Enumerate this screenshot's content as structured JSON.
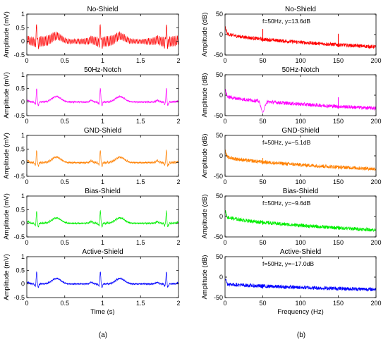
{
  "figure": {
    "caption_left": "(a)",
    "caption_right": "(b)"
  },
  "chart_data": [
    {
      "type": "line",
      "title": "No-Shield",
      "xlabel": "",
      "ylabel": "Amplitude (mV)",
      "xlim": [
        0,
        2
      ],
      "ylim": [
        -0.5,
        1
      ],
      "xticks": [
        0,
        0.5,
        1,
        1.5,
        2
      ],
      "xticklabels": [
        "0",
        "0.5",
        "1",
        "1.5",
        "2"
      ],
      "yticks": [
        -0.5,
        0,
        0.5,
        1
      ],
      "yticklabels": [
        "-0.5",
        "0",
        "0.5",
        "1"
      ],
      "color": "#ff0000",
      "series": [
        {
          "shape": "ecg",
          "baseline": 0,
          "noise_50hz_amplitude": 0.18,
          "r_peaks_s": [
            0.13,
            0.97,
            1.84
          ],
          "r_peak_mV": 0.55,
          "t_wave_mV": 0.2
        }
      ]
    },
    {
      "type": "line",
      "title": "No-Shield",
      "xlabel": "",
      "ylabel": "Amplitude (dB)",
      "xlim": [
        0,
        200
      ],
      "ylim": [
        -50,
        50
      ],
      "xticks": [
        0,
        50,
        100,
        150,
        200
      ],
      "xticklabels": [
        "0",
        "50",
        "100",
        "150",
        "200"
      ],
      "yticks": [
        -50,
        0,
        50
      ],
      "yticklabels": [
        "-50",
        "0",
        "50"
      ],
      "color": "#ff0000",
      "annotation": "f=50Hz, y=13.6dB",
      "series": [
        {
          "shape": "spectrum",
          "start_dB": 5,
          "end_dB": -30,
          "spikes": [
            {
              "x": 50,
              "y": 13.6
            },
            {
              "x": 150,
              "y": 2
            }
          ]
        }
      ]
    },
    {
      "type": "line",
      "title": "50Hz-Notch",
      "xlabel": "",
      "ylabel": "Amplitude (mV)",
      "xlim": [
        0,
        2
      ],
      "ylim": [
        -0.5,
        1
      ],
      "xticks": [
        0,
        0.5,
        1,
        1.5,
        2
      ],
      "xticklabels": [
        "0",
        "0.5",
        "1",
        "1.5",
        "2"
      ],
      "yticks": [
        -0.5,
        0,
        0.5,
        1
      ],
      "yticklabels": [
        "-0.5",
        "0",
        "0.5",
        "1"
      ],
      "color": "#ff00ff",
      "series": [
        {
          "shape": "ecg",
          "baseline": 0,
          "noise_50hz_amplitude": 0.02,
          "r_peaks_s": [
            0.13,
            0.97,
            1.84
          ],
          "r_peak_mV": 0.5,
          "t_wave_mV": 0.2
        }
      ]
    },
    {
      "type": "line",
      "title": "50Hz-Notch",
      "xlabel": "",
      "ylabel": "Amplitude (dB)",
      "xlim": [
        0,
        200
      ],
      "ylim": [
        -50,
        50
      ],
      "xticks": [
        0,
        50,
        100,
        150,
        200
      ],
      "xticklabels": [
        "0",
        "50",
        "100",
        "150",
        "200"
      ],
      "yticks": [
        -50,
        0,
        50
      ],
      "yticklabels": [
        "-50",
        "0",
        "50"
      ],
      "color": "#ff00ff",
      "annotation": "",
      "series": [
        {
          "shape": "spectrum",
          "start_dB": 0,
          "end_dB": -32,
          "notch": {
            "x": 50,
            "y": -42
          },
          "spikes": [
            {
              "x": 150,
              "y": -5
            }
          ]
        }
      ]
    },
    {
      "type": "line",
      "title": "GND-Shield",
      "xlabel": "",
      "ylabel": "Amplitude (mV)",
      "xlim": [
        0,
        2
      ],
      "ylim": [
        -0.5,
        1
      ],
      "xticks": [
        0,
        0.5,
        1,
        1.5,
        2
      ],
      "xticklabels": [
        "0",
        "0.5",
        "1",
        "1.5",
        "2"
      ],
      "yticks": [
        -0.5,
        0,
        0.5,
        1
      ],
      "yticklabels": [
        "-0.5",
        "0",
        "0.5",
        "1"
      ],
      "color": "#ff8000",
      "series": [
        {
          "shape": "ecg",
          "baseline": 0,
          "noise_50hz_amplitude": 0.03,
          "r_peaks_s": [
            0.13,
            0.97,
            1.84
          ],
          "r_peak_mV": 0.45,
          "t_wave_mV": 0.2
        }
      ]
    },
    {
      "type": "line",
      "title": "GND-Shield",
      "xlabel": "",
      "ylabel": "Amplitude (dB)",
      "xlim": [
        0,
        200
      ],
      "ylim": [
        -50,
        50
      ],
      "xticks": [
        0,
        50,
        100,
        150,
        200
      ],
      "xticklabels": [
        "0",
        "50",
        "100",
        "150",
        "200"
      ],
      "yticks": [
        -50,
        0,
        50
      ],
      "yticklabels": [
        "-50",
        "0",
        "50"
      ],
      "color": "#ff8000",
      "annotation": "f=50Hz, y=−5.1dB",
      "series": [
        {
          "shape": "spectrum",
          "start_dB": 0,
          "end_dB": -32,
          "spikes": [
            {
              "x": 50,
              "y": -5.1
            }
          ]
        }
      ]
    },
    {
      "type": "line",
      "title": "Bias-Shield",
      "xlabel": "",
      "ylabel": "Amplitude (mV)",
      "xlim": [
        0,
        2
      ],
      "ylim": [
        -0.5,
        1
      ],
      "xticks": [
        0,
        0.5,
        1,
        1.5,
        2
      ],
      "xticklabels": [
        "0",
        "0.5",
        "1",
        "1.5",
        "2"
      ],
      "yticks": [
        -0.5,
        0,
        0.5,
        1
      ],
      "yticklabels": [
        "-0.5",
        "0",
        "0.5",
        "1"
      ],
      "color": "#00ee00",
      "series": [
        {
          "shape": "ecg",
          "baseline": 0,
          "noise_50hz_amplitude": 0.025,
          "r_peaks_s": [
            0.13,
            0.97,
            1.84
          ],
          "r_peak_mV": 0.45,
          "t_wave_mV": 0.2
        }
      ]
    },
    {
      "type": "line",
      "title": "Bias-Shield",
      "xlabel": "",
      "ylabel": "Amplitude (dB)",
      "xlim": [
        0,
        200
      ],
      "ylim": [
        -50,
        50
      ],
      "xticks": [
        0,
        50,
        100,
        150,
        200
      ],
      "xticklabels": [
        "0",
        "50",
        "100",
        "150",
        "200"
      ],
      "yticks": [
        -50,
        0,
        50
      ],
      "yticklabels": [
        "-50",
        "0",
        "50"
      ],
      "color": "#00ee00",
      "annotation": "f=50Hz, y=−9.6dB",
      "series": [
        {
          "shape": "spectrum",
          "start_dB": 2,
          "end_dB": -33,
          "spikes": [
            {
              "x": 50,
              "y": -9.6
            }
          ]
        }
      ]
    },
    {
      "type": "line",
      "title": "Active-Shield",
      "xlabel": "Time (s)",
      "ylabel": "Amplitude (mV)",
      "xlim": [
        0,
        2
      ],
      "ylim": [
        -0.5,
        1
      ],
      "xticks": [
        0,
        0.5,
        1,
        1.5,
        2
      ],
      "xticklabels": [
        "0",
        "0.5",
        "1",
        "1.5",
        "2"
      ],
      "yticks": [
        -0.5,
        0,
        0.5,
        1
      ],
      "yticklabels": [
        "-0.5",
        "0",
        "0.5",
        "1"
      ],
      "color": "#0000ff",
      "series": [
        {
          "shape": "ecg",
          "baseline": 0,
          "noise_50hz_amplitude": 0.02,
          "r_peaks_s": [
            0.13,
            0.97,
            1.84
          ],
          "r_peak_mV": 0.45,
          "t_wave_mV": 0.2
        }
      ]
    },
    {
      "type": "line",
      "title": "Active-Shield",
      "xlabel": "Frequency (Hz)",
      "ylabel": "Amplitude (dB)",
      "xlim": [
        0,
        200
      ],
      "ylim": [
        -50,
        50
      ],
      "xticks": [
        0,
        50,
        100,
        150,
        200
      ],
      "xticklabels": [
        "0",
        "50",
        "100",
        "150",
        "200"
      ],
      "yticks": [
        -50,
        0,
        50
      ],
      "yticklabels": [
        "-50",
        "0",
        "50"
      ],
      "color": "#0000ff",
      "annotation": "f=50Hz, y=−17.0dB",
      "series": [
        {
          "shape": "spectrum",
          "start_dB": -15,
          "end_dB": -30,
          "spikes": [
            {
              "x": 50,
              "y": -17.0
            }
          ]
        }
      ]
    }
  ]
}
